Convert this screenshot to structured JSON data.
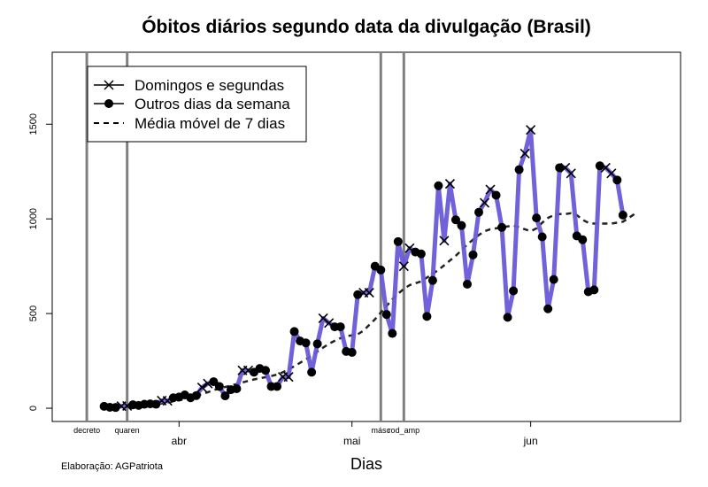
{
  "chart_data": {
    "type": "line",
    "title": "Óbitos diários segundo data da divulgação (Brasil)",
    "xlabel": "Dias",
    "ylabel": "",
    "ylim": [
      -70,
      1880
    ],
    "xlim": [
      "2020-03-10",
      "2020-06-27"
    ],
    "yticks": [
      0,
      500,
      1000,
      1500
    ],
    "month_ticks": [
      {
        "date": "2020-04-01",
        "label": "abr"
      },
      {
        "date": "2020-05-01",
        "label": "mai"
      },
      {
        "date": "2020-06-01",
        "label": "jun"
      }
    ],
    "events": [
      {
        "date": "2020-03-16",
        "label": "decreto"
      },
      {
        "date": "2020-03-23",
        "label": "quaren"
      },
      {
        "date": "2020-05-06",
        "label": "másc"
      },
      {
        "date": "2020-05-10",
        "label": "rod_amp"
      }
    ],
    "caption": "Elaboração: AGPatriota",
    "legend": {
      "position": "top-left",
      "entries": [
        {
          "label": "Domingos e segundas",
          "marker": "x"
        },
        {
          "label": "Outros dias da semana",
          "marker": "dot"
        },
        {
          "label": "Média móvel de 7 dias",
          "marker": "dashed"
        }
      ]
    },
    "grid": false,
    "series": [
      {
        "kind": "daily",
        "start_date": "2020-03-19",
        "line_color": "#6a5ad8",
        "values": [
          10,
          5,
          4,
          11,
          12,
          18,
          15,
          21,
          23,
          21,
          40,
          39,
          55,
          59,
          70,
          55,
          67,
          110,
          130,
          140,
          115,
          65,
          98,
          103,
          200,
          200,
          190,
          210,
          200,
          115,
          115,
          165,
          165,
          405,
          355,
          345,
          190,
          340,
          475,
          450,
          430,
          430,
          300,
          295,
          600,
          610,
          610,
          750,
          730,
          495,
          395,
          880,
          750,
          845,
          825,
          815,
          485,
          675,
          1175,
          885,
          1185,
          995,
          965,
          655,
          810,
          1035,
          1085,
          1155,
          1125,
          955,
          480,
          620,
          1260,
          1345,
          1470,
          1005,
          905,
          525,
          680,
          1270,
          1270,
          1240,
          910,
          890,
          615,
          625,
          1280,
          1270,
          1240,
          1205,
          1020
        ]
      },
      {
        "kind": "moving_average_7d",
        "start_date": "2020-03-25",
        "line_color": "#222222",
        "values": [
          10,
          13,
          16,
          20,
          25,
          30,
          36,
          42,
          48,
          55,
          65,
          75,
          85,
          95,
          105,
          112,
          120,
          128,
          136,
          144,
          152,
          158,
          164,
          170,
          178,
          190,
          205,
          222,
          240,
          258,
          277,
          300,
          320,
          340,
          356,
          370,
          380,
          385,
          390,
          410,
          440,
          470,
          505,
          540,
          575,
          605,
          630,
          650,
          660,
          670,
          690,
          710,
          730,
          755,
          780,
          805,
          835,
          865,
          890,
          915,
          935,
          945,
          950,
          955,
          960,
          965,
          955,
          945,
          935,
          950,
          980,
          1005,
          1020,
          1025,
          1025,
          1030,
          1020,
          995,
          980,
          975,
          975,
          975,
          975,
          980,
          985,
          1005,
          1025
        ]
      }
    ]
  }
}
